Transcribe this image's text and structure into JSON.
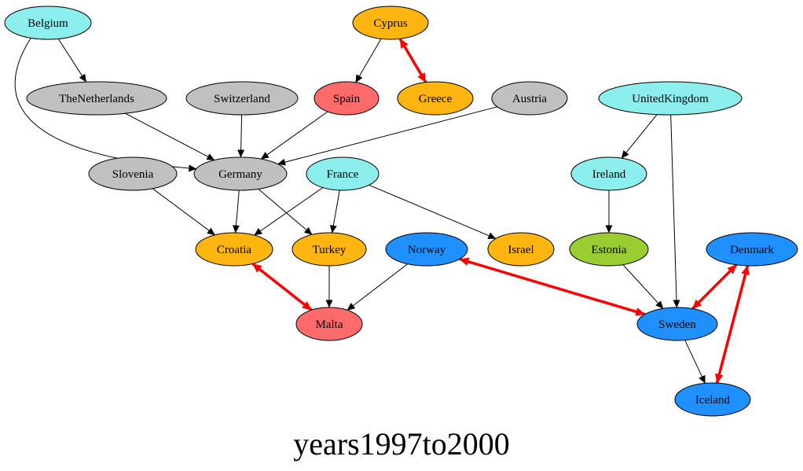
{
  "title": "years1997to2000",
  "colors": {
    "cyan": "#8deeee",
    "gray": "#c0c0c0",
    "orange": "#ffb50f",
    "salmon": "#ff6a6a",
    "blue": "#1e90ff",
    "green": "#9acd32",
    "edge": "#000000",
    "mutual_edge": "#ff0000"
  },
  "nodes": [
    {
      "id": "Belgium",
      "label": "Belgium",
      "color": "cyan"
    },
    {
      "id": "Cyprus",
      "label": "Cyprus",
      "color": "orange"
    },
    {
      "id": "TheNetherlands",
      "label": "TheNetherlands",
      "color": "gray"
    },
    {
      "id": "Switzerland",
      "label": "Switzerland",
      "color": "gray"
    },
    {
      "id": "Spain",
      "label": "Spain",
      "color": "salmon"
    },
    {
      "id": "Greece",
      "label": "Greece",
      "color": "orange"
    },
    {
      "id": "Austria",
      "label": "Austria",
      "color": "gray"
    },
    {
      "id": "UnitedKingdom",
      "label": "UnitedKingdom",
      "color": "cyan"
    },
    {
      "id": "Slovenia",
      "label": "Slovenia",
      "color": "gray"
    },
    {
      "id": "Germany",
      "label": "Germany",
      "color": "gray"
    },
    {
      "id": "France",
      "label": "France",
      "color": "cyan"
    },
    {
      "id": "Ireland",
      "label": "Ireland",
      "color": "cyan"
    },
    {
      "id": "Croatia",
      "label": "Croatia",
      "color": "orange"
    },
    {
      "id": "Turkey",
      "label": "Turkey",
      "color": "orange"
    },
    {
      "id": "Norway",
      "label": "Norway",
      "color": "blue"
    },
    {
      "id": "Israel",
      "label": "Israel",
      "color": "orange"
    },
    {
      "id": "Estonia",
      "label": "Estonia",
      "color": "green"
    },
    {
      "id": "Denmark",
      "label": "Denmark",
      "color": "blue"
    },
    {
      "id": "Malta",
      "label": "Malta",
      "color": "salmon"
    },
    {
      "id": "Sweden",
      "label": "Sweden",
      "color": "blue"
    },
    {
      "id": "Iceland",
      "label": "Iceland",
      "color": "blue"
    }
  ],
  "edges": [
    {
      "from": "Belgium",
      "to": "TheNetherlands",
      "mutual": false
    },
    {
      "from": "Belgium",
      "to": "Germany",
      "mutual": false
    },
    {
      "from": "Cyprus",
      "to": "Spain",
      "mutual": false
    },
    {
      "from": "Cyprus",
      "to": "Greece",
      "mutual": true
    },
    {
      "from": "TheNetherlands",
      "to": "Germany",
      "mutual": false
    },
    {
      "from": "Switzerland",
      "to": "Germany",
      "mutual": false
    },
    {
      "from": "Spain",
      "to": "Germany",
      "mutual": false
    },
    {
      "from": "Austria",
      "to": "Germany",
      "mutual": false
    },
    {
      "from": "UnitedKingdom",
      "to": "Ireland",
      "mutual": false
    },
    {
      "from": "UnitedKingdom",
      "to": "Sweden",
      "mutual": false
    },
    {
      "from": "Slovenia",
      "to": "Croatia",
      "mutual": false
    },
    {
      "from": "Germany",
      "to": "Croatia",
      "mutual": false
    },
    {
      "from": "Germany",
      "to": "Turkey",
      "mutual": false
    },
    {
      "from": "France",
      "to": "Croatia",
      "mutual": false
    },
    {
      "from": "France",
      "to": "Turkey",
      "mutual": false
    },
    {
      "from": "France",
      "to": "Israel",
      "mutual": false
    },
    {
      "from": "Ireland",
      "to": "Estonia",
      "mutual": false
    },
    {
      "from": "Croatia",
      "to": "Malta",
      "mutual": true
    },
    {
      "from": "Turkey",
      "to": "Malta",
      "mutual": false
    },
    {
      "from": "Norway",
      "to": "Malta",
      "mutual": false
    },
    {
      "from": "Norway",
      "to": "Sweden",
      "mutual": true
    },
    {
      "from": "Estonia",
      "to": "Sweden",
      "mutual": false
    },
    {
      "from": "Denmark",
      "to": "Sweden",
      "mutual": true
    },
    {
      "from": "Denmark",
      "to": "Iceland",
      "mutual": true
    },
    {
      "from": "Sweden",
      "to": "Iceland",
      "mutual": false
    }
  ]
}
